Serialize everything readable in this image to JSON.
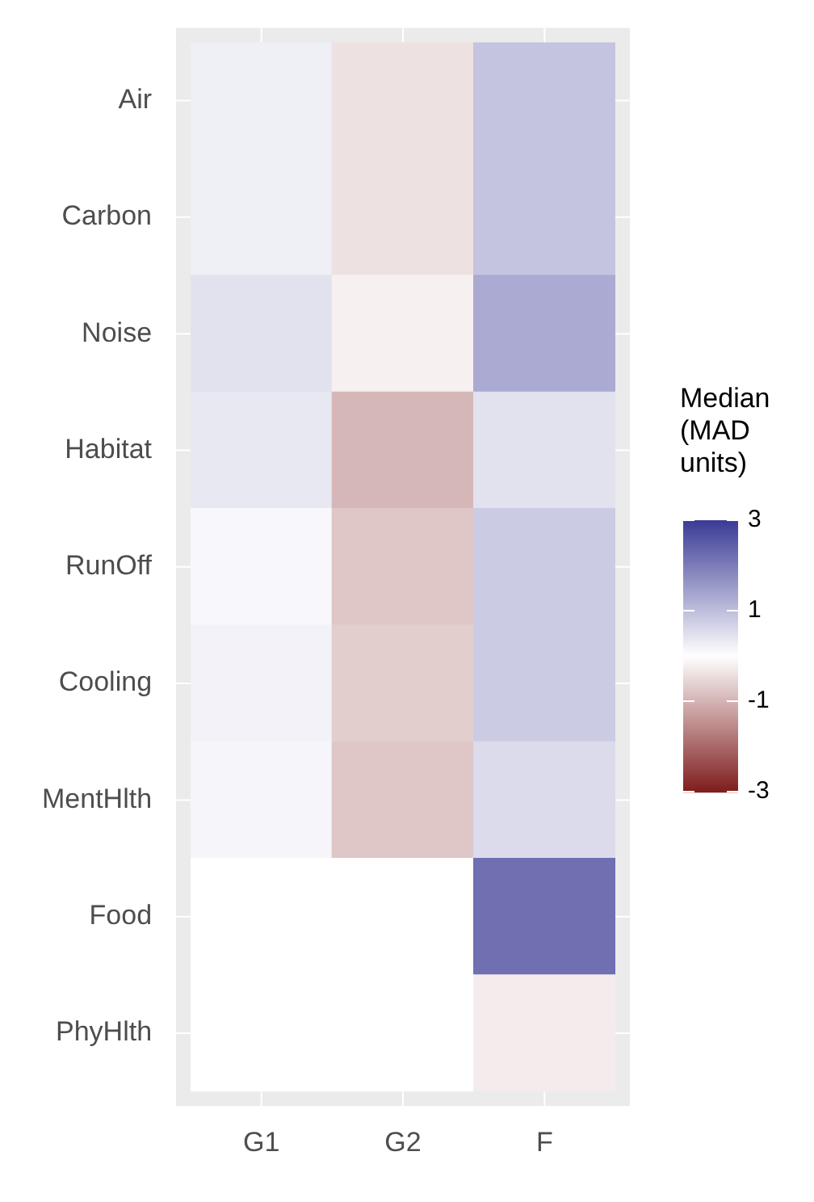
{
  "chart_data": {
    "type": "heatmap",
    "legend_title": "Median (MAD units)",
    "categories": [
      "G1",
      "G2",
      "F"
    ],
    "y_categories": [
      "Air",
      "Carbon",
      "Noise",
      "Habitat",
      "RunOff",
      "Cooling",
      "MentHlth",
      "Food",
      "PhyHlth"
    ],
    "cells": [
      [
        0.25,
        -0.4,
        0.9
      ],
      [
        0.25,
        -0.4,
        0.9
      ],
      [
        0.45,
        -0.2,
        1.3
      ],
      [
        0.35,
        -0.95,
        0.45
      ],
      [
        0.1,
        -0.75,
        0.8
      ],
      [
        0.2,
        -0.65,
        0.8
      ],
      [
        0.15,
        -0.75,
        0.55
      ],
      [
        0,
        0,
        2.2
      ],
      [
        0,
        0,
        -0.25
      ]
    ],
    "colors": [
      "#7f1d1d",
      "#ffffff",
      "#3b3b96"
    ],
    "clim": [
      -3,
      3
    ],
    "cticks": [
      -3,
      -1,
      1,
      3
    ]
  }
}
